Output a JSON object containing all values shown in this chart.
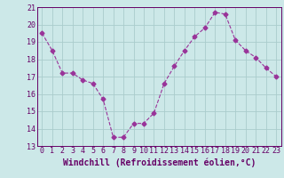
{
  "x": [
    0,
    1,
    2,
    3,
    4,
    5,
    6,
    7,
    8,
    9,
    10,
    11,
    12,
    13,
    14,
    15,
    16,
    17,
    18,
    19,
    20,
    21,
    22,
    23
  ],
  "y": [
    19.5,
    18.5,
    17.2,
    17.2,
    16.8,
    16.6,
    15.7,
    13.5,
    13.5,
    14.3,
    14.3,
    14.9,
    16.6,
    17.6,
    18.5,
    19.3,
    19.8,
    20.7,
    20.6,
    19.1,
    18.5,
    18.1,
    17.5,
    17.0
  ],
  "line_color": "#993399",
  "marker": "D",
  "markersize": 2.5,
  "xlabel": "Windchill (Refroidissement éolien,°C)",
  "xlim": [
    -0.5,
    23.5
  ],
  "ylim": [
    13,
    21
  ],
  "yticks": [
    13,
    14,
    15,
    16,
    17,
    18,
    19,
    20,
    21
  ],
  "xticks": [
    0,
    1,
    2,
    3,
    4,
    5,
    6,
    7,
    8,
    9,
    10,
    11,
    12,
    13,
    14,
    15,
    16,
    17,
    18,
    19,
    20,
    21,
    22,
    23
  ],
  "bg_color": "#cce8e8",
  "grid_color": "#aacccc",
  "tick_color": "#660066",
  "xlabel_fontsize": 7.0,
  "tick_fontsize": 6.0
}
